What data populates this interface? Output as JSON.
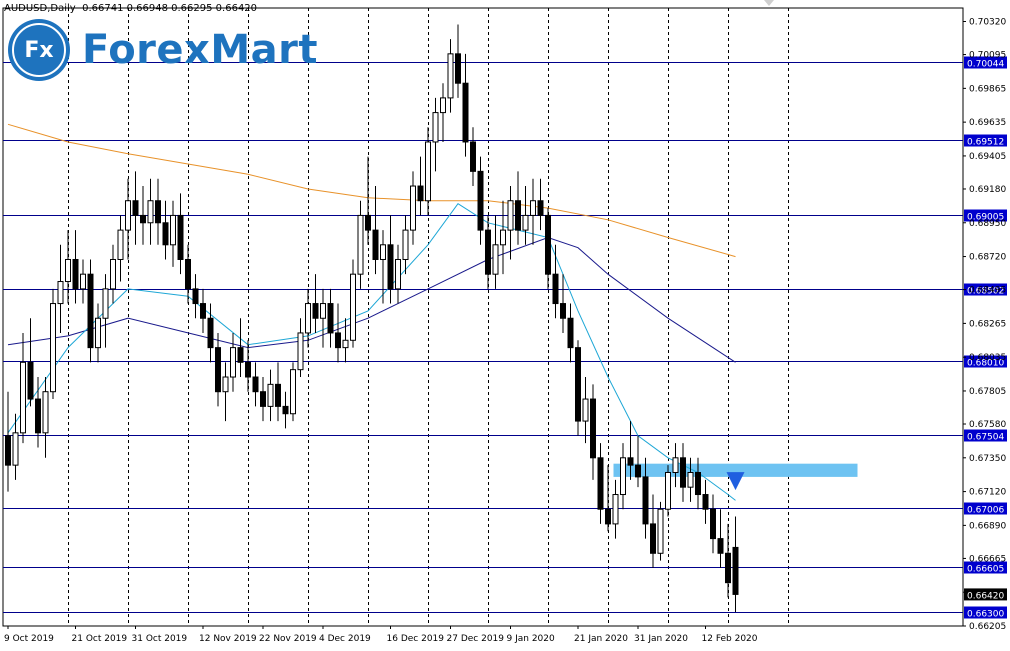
{
  "header": {
    "symbol": "AUDUSD,Daily",
    "ohlc": "0.66741 0.66948 0.66295 0.66420"
  },
  "logo": {
    "badge_text": "Fx",
    "brand_text": "ForexMart",
    "brand_color": "#1e73be"
  },
  "colors": {
    "background": "#ffffff",
    "candle": "#000000",
    "level_line": "#00008b",
    "level_label_bg": "#0000cd",
    "ma_fast": "#1ea7d6",
    "ma_mid": "#1a1a8c",
    "ma_slow": "#e8922a",
    "zone": "#6ec3f2",
    "arrow": "#1f5fe0",
    "current_price_bg": "#000000"
  },
  "chart_data": {
    "type": "candlestick",
    "title": "AUDUSD,Daily",
    "ylim": [
      0.66205,
      0.70412
    ],
    "y_ticks": [
      "0.70320",
      "0.70095",
      "0.69865",
      "0.69635",
      "0.69405",
      "0.69180",
      "0.68950",
      "0.68720",
      "0.68495",
      "0.68265",
      "0.68035",
      "0.67805",
      "0.67580",
      "0.67350",
      "0.67120",
      "0.66890",
      "0.66665",
      "0.66435",
      "0.66205"
    ],
    "x_labels": [
      "9 Oct 2019",
      "21 Oct 2019",
      "31 Oct 2019",
      "12 Nov 2019",
      "22 Nov 2019",
      "4 Dec 2019",
      "16 Dec 2019",
      "27 Dec 2019",
      "9 Jan 2020",
      "21 Jan 2020",
      "31 Jan 2020",
      "12 Feb 2020"
    ],
    "x_label_index": [
      0,
      9,
      17,
      26,
      34,
      42,
      51,
      59,
      67,
      76,
      84,
      93
    ],
    "vertical_separators_index": [
      8,
      16,
      24,
      32,
      40,
      48,
      56,
      64,
      72,
      80,
      88,
      96,
      104
    ],
    "levels": [
      "0.70044",
      "0.69512",
      "0.69005",
      "0.68502",
      "0.68010",
      "0.67504",
      "0.67006",
      "0.66605",
      "0.66300"
    ],
    "current_price": "0.66420",
    "resistance_zone": {
      "from": 0.6722,
      "to": 0.6731,
      "start_index": 81,
      "end_index": 113
    },
    "sell_arrow": {
      "index": 97,
      "price": 0.6713
    },
    "candles": [
      [
        0.675,
        0.678,
        0.6712,
        0.673
      ],
      [
        0.673,
        0.6765,
        0.672,
        0.6752
      ],
      [
        0.6752,
        0.682,
        0.6745,
        0.68
      ],
      [
        0.68,
        0.683,
        0.677,
        0.6775
      ],
      [
        0.6775,
        0.679,
        0.6742,
        0.6752
      ],
      [
        0.6752,
        0.679,
        0.6735,
        0.678
      ],
      [
        0.678,
        0.685,
        0.6775,
        0.684
      ],
      [
        0.684,
        0.688,
        0.682,
        0.6855
      ],
      [
        0.6855,
        0.689,
        0.684,
        0.687
      ],
      [
        0.687,
        0.689,
        0.684,
        0.685
      ],
      [
        0.685,
        0.687,
        0.684,
        0.686
      ],
      [
        0.686,
        0.687,
        0.68,
        0.681
      ],
      [
        0.681,
        0.684,
        0.68,
        0.683
      ],
      [
        0.683,
        0.686,
        0.681,
        0.685
      ],
      [
        0.685,
        0.688,
        0.684,
        0.687
      ],
      [
        0.687,
        0.69,
        0.6855,
        0.689
      ],
      [
        0.689,
        0.6925,
        0.687,
        0.691
      ],
      [
        0.691,
        0.693,
        0.688,
        0.69
      ],
      [
        0.69,
        0.692,
        0.688,
        0.6895
      ],
      [
        0.6895,
        0.6925,
        0.688,
        0.691
      ],
      [
        0.691,
        0.6925,
        0.688,
        0.6895
      ],
      [
        0.6895,
        0.691,
        0.687,
        0.688
      ],
      [
        0.688,
        0.691,
        0.6865,
        0.69
      ],
      [
        0.69,
        0.6915,
        0.686,
        0.687
      ],
      [
        0.687,
        0.688,
        0.684,
        0.685
      ],
      [
        0.685,
        0.686,
        0.683,
        0.684
      ],
      [
        0.684,
        0.685,
        0.682,
        0.683
      ],
      [
        0.683,
        0.684,
        0.68,
        0.681
      ],
      [
        0.681,
        0.682,
        0.677,
        0.678
      ],
      [
        0.678,
        0.68,
        0.676,
        0.679
      ],
      [
        0.679,
        0.682,
        0.678,
        0.681
      ],
      [
        0.681,
        0.683,
        0.679,
        0.68
      ],
      [
        0.68,
        0.6815,
        0.678,
        0.679
      ],
      [
        0.679,
        0.68,
        0.677,
        0.678
      ],
      [
        0.678,
        0.679,
        0.676,
        0.677
      ],
      [
        0.677,
        0.6795,
        0.676,
        0.6785
      ],
      [
        0.6785,
        0.68,
        0.676,
        0.677
      ],
      [
        0.677,
        0.678,
        0.6755,
        0.6765
      ],
      [
        0.6765,
        0.68,
        0.676,
        0.6795
      ],
      [
        0.6795,
        0.683,
        0.679,
        0.682
      ],
      [
        0.682,
        0.685,
        0.681,
        0.684
      ],
      [
        0.684,
        0.686,
        0.682,
        0.683
      ],
      [
        0.683,
        0.685,
        0.681,
        0.684
      ],
      [
        0.684,
        0.685,
        0.681,
        0.682
      ],
      [
        0.682,
        0.684,
        0.68,
        0.681
      ],
      [
        0.681,
        0.683,
        0.68,
        0.6815
      ],
      [
        0.6815,
        0.687,
        0.681,
        0.686
      ],
      [
        0.686,
        0.691,
        0.685,
        0.69
      ],
      [
        0.69,
        0.694,
        0.688,
        0.689
      ],
      [
        0.689,
        0.692,
        0.686,
        0.687
      ],
      [
        0.687,
        0.689,
        0.684,
        0.688
      ],
      [
        0.688,
        0.69,
        0.684,
        0.685
      ],
      [
        0.685,
        0.688,
        0.684,
        0.687
      ],
      [
        0.687,
        0.69,
        0.686,
        0.689
      ],
      [
        0.689,
        0.693,
        0.688,
        0.692
      ],
      [
        0.692,
        0.694,
        0.69,
        0.691
      ],
      [
        0.691,
        0.696,
        0.69,
        0.695
      ],
      [
        0.695,
        0.698,
        0.693,
        0.697
      ],
      [
        0.697,
        0.699,
        0.695,
        0.698
      ],
      [
        0.698,
        0.702,
        0.697,
        0.701
      ],
      [
        0.701,
        0.703,
        0.698,
        0.699
      ],
      [
        0.699,
        0.701,
        0.694,
        0.695
      ],
      [
        0.695,
        0.696,
        0.692,
        0.693
      ],
      [
        0.693,
        0.694,
        0.688,
        0.689
      ],
      [
        0.689,
        0.69,
        0.685,
        0.686
      ],
      [
        0.686,
        0.69,
        0.685,
        0.688
      ],
      [
        0.688,
        0.691,
        0.686,
        0.689
      ],
      [
        0.689,
        0.692,
        0.687,
        0.691
      ],
      [
        0.691,
        0.693,
        0.688,
        0.689
      ],
      [
        0.689,
        0.692,
        0.688,
        0.69
      ],
      [
        0.69,
        0.6925,
        0.688,
        0.691
      ],
      [
        0.691,
        0.6925,
        0.689,
        0.69
      ],
      [
        0.69,
        0.6905,
        0.685,
        0.686
      ],
      [
        0.686,
        0.688,
        0.683,
        0.684
      ],
      [
        0.684,
        0.686,
        0.682,
        0.683
      ],
      [
        0.683,
        0.684,
        0.68,
        0.681
      ],
      [
        0.681,
        0.6815,
        0.675,
        0.676
      ],
      [
        0.676,
        0.679,
        0.6745,
        0.6775
      ],
      [
        0.6775,
        0.6785,
        0.672,
        0.6735
      ],
      [
        0.6735,
        0.6745,
        0.669,
        0.67
      ],
      [
        0.67,
        0.673,
        0.6685,
        0.669
      ],
      [
        0.669,
        0.672,
        0.668,
        0.671
      ],
      [
        0.671,
        0.6745,
        0.67,
        0.6735
      ],
      [
        0.6735,
        0.676,
        0.672,
        0.673
      ],
      [
        0.673,
        0.675,
        0.6715,
        0.6722
      ],
      [
        0.6722,
        0.6735,
        0.668,
        0.669
      ],
      [
        0.669,
        0.671,
        0.666,
        0.667
      ],
      [
        0.667,
        0.6705,
        0.6665,
        0.67
      ],
      [
        0.67,
        0.673,
        0.6695,
        0.6725
      ],
      [
        0.6725,
        0.6745,
        0.6715,
        0.6735
      ],
      [
        0.6735,
        0.6745,
        0.6705,
        0.6715
      ],
      [
        0.6715,
        0.6735,
        0.6705,
        0.6725
      ],
      [
        0.6725,
        0.6735,
        0.67,
        0.671
      ],
      [
        0.671,
        0.672,
        0.669,
        0.67
      ],
      [
        0.67,
        0.671,
        0.667,
        0.668
      ],
      [
        0.668,
        0.67,
        0.666,
        0.667
      ],
      [
        0.667,
        0.669,
        0.664,
        0.665
      ],
      [
        0.6674,
        0.6695,
        0.663,
        0.6642
      ]
    ],
    "ma_fast": [
      [
        0,
        0.6752
      ],
      [
        8,
        0.681
      ],
      [
        16,
        0.685
      ],
      [
        24,
        0.6845
      ],
      [
        32,
        0.6812
      ],
      [
        40,
        0.6818
      ],
      [
        48,
        0.6835
      ],
      [
        56,
        0.688
      ],
      [
        60,
        0.6908
      ],
      [
        64,
        0.6895
      ],
      [
        72,
        0.6885
      ],
      [
        76,
        0.6835
      ],
      [
        80,
        0.679
      ],
      [
        84,
        0.675
      ],
      [
        88,
        0.6735
      ],
      [
        92,
        0.6725
      ],
      [
        96,
        0.671
      ],
      [
        97,
        0.6706
      ]
    ],
    "ma_mid": [
      [
        0,
        0.6812
      ],
      [
        8,
        0.6818
      ],
      [
        16,
        0.683
      ],
      [
        24,
        0.682
      ],
      [
        32,
        0.681
      ],
      [
        40,
        0.6815
      ],
      [
        48,
        0.683
      ],
      [
        56,
        0.685
      ],
      [
        64,
        0.687
      ],
      [
        72,
        0.6885
      ],
      [
        76,
        0.6878
      ],
      [
        80,
        0.686
      ],
      [
        88,
        0.683
      ],
      [
        97,
        0.68
      ]
    ],
    "ma_slow": [
      [
        0,
        0.6962
      ],
      [
        8,
        0.695
      ],
      [
        16,
        0.6942
      ],
      [
        24,
        0.6935
      ],
      [
        32,
        0.6928
      ],
      [
        40,
        0.6918
      ],
      [
        48,
        0.6912
      ],
      [
        56,
        0.691
      ],
      [
        64,
        0.691
      ],
      [
        72,
        0.6905
      ],
      [
        80,
        0.6897
      ],
      [
        88,
        0.6885
      ],
      [
        97,
        0.6872
      ]
    ]
  }
}
